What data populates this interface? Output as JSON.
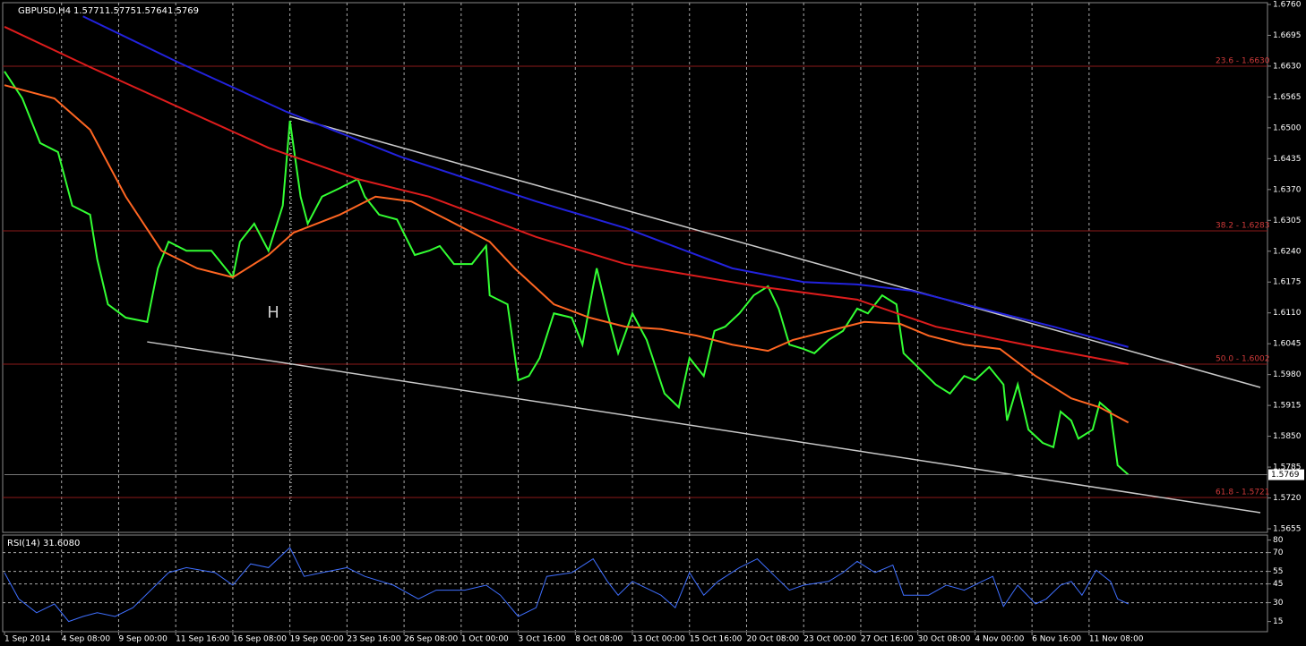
{
  "chart_data": [
    {
      "type": "line",
      "title": "GBPUSD,H4",
      "header_values": [
        1.5771,
        1.5775,
        1.5764,
        1.5769
      ],
      "annotation": "H",
      "xlim": [
        0,
        354
      ],
      "xticks": [
        {
          "value": 0,
          "label": "1 Sep 2014"
        },
        {
          "value": 16,
          "label": "4 Sep 08:00"
        },
        {
          "value": 32,
          "label": "9 Sep 00:00"
        },
        {
          "value": 48,
          "label": "11 Sep 16:00"
        },
        {
          "value": 64,
          "label": "16 Sep 08:00"
        },
        {
          "value": 80,
          "label": "19 Sep 00:00"
        },
        {
          "value": 96,
          "label": "23 Sep 16:00"
        },
        {
          "value": 112,
          "label": "26 Sep 08:00"
        },
        {
          "value": 128,
          "label": "1 Oct 00:00"
        },
        {
          "value": 144,
          "label": "3 Oct 16:00"
        },
        {
          "value": 160,
          "label": "8 Oct 08:00"
        },
        {
          "value": 176,
          "label": "13 Oct 00:00"
        },
        {
          "value": 192,
          "label": "15 Oct 16:00"
        },
        {
          "value": 208,
          "label": "20 Oct 08:00"
        },
        {
          "value": 224,
          "label": "23 Oct 00:00"
        },
        {
          "value": 240,
          "label": "27 Oct 16:00"
        },
        {
          "value": 256,
          "label": "30 Oct 08:00"
        },
        {
          "value": 272,
          "label": "4 Nov 00:00"
        },
        {
          "value": 288,
          "label": "6 Nov 16:00"
        },
        {
          "value": 304,
          "label": "11 Nov 08:00"
        }
      ],
      "ylim": [
        1.5655,
        1.676
      ],
      "yticks": [
        {
          "value": 1.676,
          "label": "1.6760"
        },
        1.6695,
        {
          "value": 1.663,
          "label": "1.6630"
        },
        1.6565,
        {
          "value": 1.65,
          "label": "1.6500"
        },
        1.6435,
        {
          "value": 1.637,
          "label": "1.6370"
        },
        1.6305,
        {
          "value": 1.624,
          "label": "1.6240"
        },
        1.6175,
        {
          "value": 1.611,
          "label": "1.6110"
        },
        1.6045,
        {
          "value": 1.598,
          "label": "1.5980"
        },
        1.5915,
        {
          "value": 1.585,
          "label": "1.5850"
        },
        1.5785,
        {
          "value": 1.572,
          "label": "1.5720"
        },
        1.5655
      ],
      "grid": true,
      "series": [
        {
          "color": "#33ff33",
          "x": [
            0,
            5,
            10,
            15,
            19,
            24,
            26,
            29,
            34,
            40,
            43,
            46,
            51,
            58,
            64,
            66,
            70,
            74,
            78,
            80,
            83,
            85,
            89,
            94,
            99,
            101,
            105,
            110,
            115,
            119,
            122,
            126,
            131,
            135,
            136,
            141,
            144,
            147,
            150,
            154,
            159,
            162,
            165,
            166,
            169,
            172,
            176,
            180,
            185,
            189,
            192,
            196,
            199,
            202,
            206,
            210,
            214,
            217,
            220,
            224,
            227,
            231,
            235,
            239,
            242,
            246,
            250,
            252,
            256,
            261,
            265,
            269,
            272,
            276,
            280,
            281,
            284,
            287,
            291,
            294,
            296,
            299,
            301,
            305,
            307,
            310,
            312,
            315
          ],
          "values": [
            1.6619,
            1.6562,
            1.6468,
            1.6449,
            1.6336,
            1.6317,
            1.6223,
            1.6128,
            1.61,
            1.6091,
            1.6204,
            1.626,
            1.6241,
            1.6241,
            1.6185,
            1.626,
            1.6298,
            1.6241,
            1.6336,
            1.6515,
            1.6355,
            1.6298,
            1.6355,
            1.6373,
            1.6392,
            1.6355,
            1.6317,
            1.6307,
            1.6232,
            1.6241,
            1.6251,
            1.6213,
            1.6213,
            1.6251,
            1.6147,
            1.6128,
            1.5968,
            1.5977,
            1.6015,
            1.6109,
            1.61,
            1.6043,
            1.6166,
            1.6204,
            1.6109,
            1.6025,
            1.6109,
            1.6053,
            1.594,
            1.5911,
            1.6015,
            1.5977,
            1.6072,
            1.6081,
            1.6109,
            1.6147,
            1.6166,
            1.6119,
            1.6043,
            1.6034,
            1.6025,
            1.6053,
            1.6072,
            1.6119,
            1.6109,
            1.6147,
            1.6128,
            1.6025,
            1.5996,
            1.5959,
            1.594,
            1.5977,
            1.5968,
            1.5996,
            1.5959,
            1.5883,
            1.5959,
            1.5864,
            1.5836,
            1.5827,
            1.5902,
            1.5883,
            1.5845,
            1.5864,
            1.5921,
            1.5902,
            1.5789,
            1.5769
          ]
        },
        {
          "color": "#2222dd",
          "x": [
            22,
            49,
            79,
            111,
            149,
            174,
            204,
            224,
            239,
            254,
            274,
            294,
            315
          ],
          "values": [
            1.6735,
            1.6637,
            1.6534,
            1.6439,
            1.6345,
            1.6289,
            1.6204,
            1.6175,
            1.617,
            1.6157,
            1.6119,
            1.6081,
            1.6038
          ]
        },
        {
          "color": "#dd1c1c",
          "x": [
            0,
            24,
            49,
            74,
            99,
            119,
            149,
            174,
            211,
            239,
            261,
            286,
            315
          ],
          "values": [
            1.6713,
            1.6628,
            1.6543,
            1.6458,
            1.6392,
            1.6355,
            1.627,
            1.6213,
            1.6166,
            1.6138,
            1.6081,
            1.6043,
            1.6002
          ]
        },
        {
          "color": "#ff6622",
          "x": [
            0,
            14,
            24,
            34,
            44,
            54,
            64,
            74,
            81,
            94,
            104,
            114,
            124,
            136,
            143,
            154,
            164,
            174,
            184,
            194,
            204,
            214,
            221,
            231,
            241,
            251,
            259,
            269,
            279,
            289,
            299,
            307,
            315
          ],
          "values": [
            1.659,
            1.6562,
            1.6496,
            1.6355,
            1.6241,
            1.6204,
            1.6185,
            1.6232,
            1.6279,
            1.6317,
            1.6355,
            1.6345,
            1.6307,
            1.626,
            1.6204,
            1.6128,
            1.61,
            1.6081,
            1.6076,
            1.6062,
            1.6043,
            1.603,
            1.6053,
            1.6072,
            1.6091,
            1.6087,
            1.6062,
            1.6043,
            1.6034,
            1.5977,
            1.593,
            1.5911,
            1.5879
          ]
        }
      ],
      "trendlines": [
        {
          "x": [
            80,
            352
          ],
          "values": [
            1.6524,
            1.5953
          ]
        },
        {
          "x": [
            40,
            352
          ],
          "values": [
            1.6049,
            1.5689
          ]
        }
      ],
      "levels": [
        {
          "label": "23.6 - 1.6630",
          "value": 1.663
        },
        {
          "label": "38.2 - 1.6283",
          "value": 1.6283
        },
        {
          "label": "50.0 - 1.6002",
          "value": 1.6002
        },
        {
          "label": "61.8 - 1.5721",
          "value": 1.5721
        }
      ]
    },
    {
      "type": "line",
      "title": "RSI(14) 31.6080",
      "xlim": [
        0,
        354
      ],
      "ylim": [
        9,
        84
      ],
      "yticks": [
        15,
        30,
        45,
        55,
        70,
        80
      ],
      "levels": [
        30,
        45,
        55,
        70
      ],
      "series": [
        {
          "color": "#3f6fff",
          "x": [
            0,
            4,
            9,
            14,
            18,
            22,
            26,
            31,
            36,
            41,
            46,
            51,
            59,
            64,
            69,
            74,
            80,
            84,
            89,
            96,
            101,
            109,
            116,
            121,
            129,
            135,
            139,
            144,
            149,
            152,
            159,
            165,
            169,
            172,
            176,
            184,
            188,
            192,
            196,
            200,
            206,
            211,
            216,
            220,
            224,
            231,
            235,
            239,
            244,
            249,
            252,
            259,
            264,
            269,
            274,
            277,
            280,
            284,
            289,
            292,
            296,
            299,
            302,
            306,
            310,
            312,
            315
          ],
          "values": [
            54,
            33,
            22,
            29,
            15,
            19,
            22,
            19,
            26,
            40,
            54,
            58,
            54,
            44,
            61,
            58,
            74,
            51,
            54,
            58,
            51,
            44,
            33,
            40,
            40,
            44,
            36,
            19,
            26,
            51,
            54,
            65,
            47,
            36,
            47,
            36,
            26,
            54,
            36,
            47,
            58,
            65,
            51,
            40,
            44,
            47,
            54,
            63,
            54,
            60,
            36,
            36,
            44,
            40,
            47,
            51,
            27,
            44,
            29,
            33,
            44,
            47,
            36,
            56,
            47,
            33,
            29
          ]
        }
      ]
    }
  ]
}
